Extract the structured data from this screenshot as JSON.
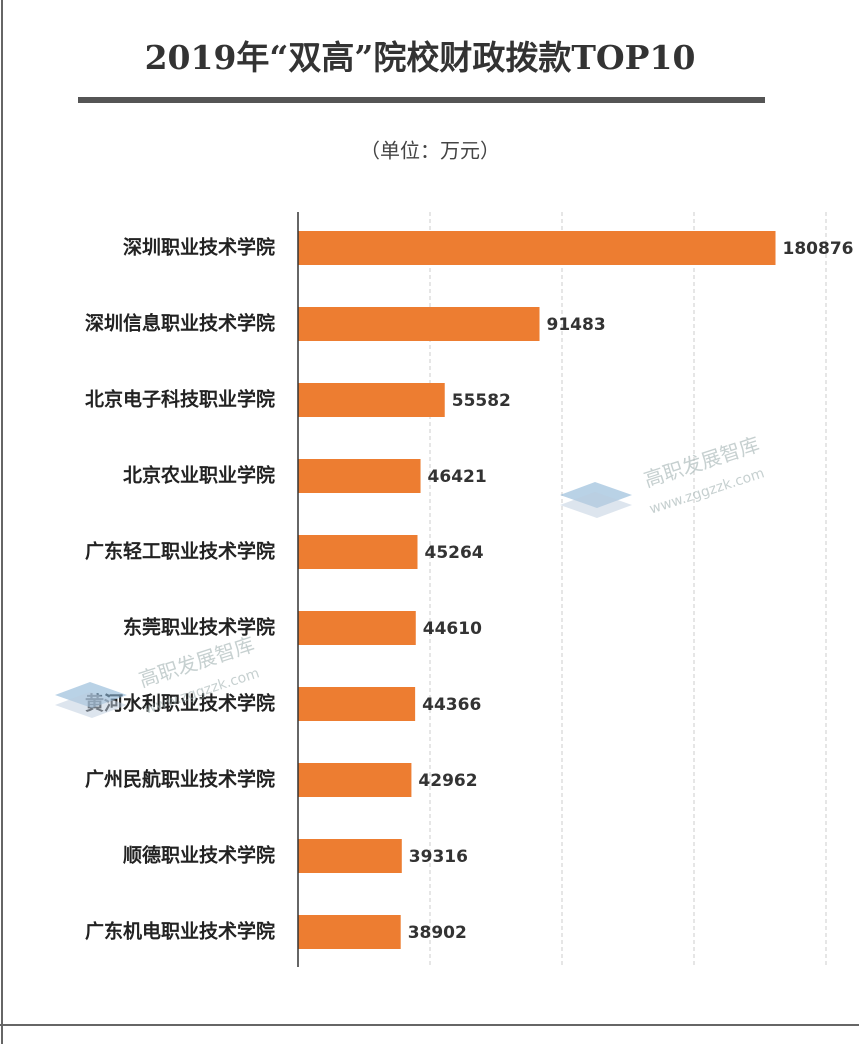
{
  "chart_data": {
    "type": "bar",
    "orientation": "horizontal",
    "title": "2019年“双高”院校财政拨款TOP10",
    "subtitle": "（单位：万元）",
    "categories": [
      "深圳职业技术学院",
      "深圳信息职业技术学院",
      "北京电子科技职业学院",
      "北京农业职业学院",
      "广东轻工职业技术学院",
      "东莞职业技术学院",
      "黄河水利职业技术学院",
      "广州民航职业技术学院",
      "顺德职业技术学院",
      "广东机电职业技术学院"
    ],
    "values": [
      180876,
      91483,
      55582,
      46421,
      45264,
      44610,
      44366,
      42962,
      39316,
      38902
    ],
    "color": "#ed7d31",
    "xlim": [
      0,
      200000
    ],
    "xticks": [
      50000,
      100000,
      150000,
      200000
    ],
    "grid": true
  },
  "watermark": {
    "name": "高职发展智库",
    "url": "www.zggzzk.com"
  }
}
